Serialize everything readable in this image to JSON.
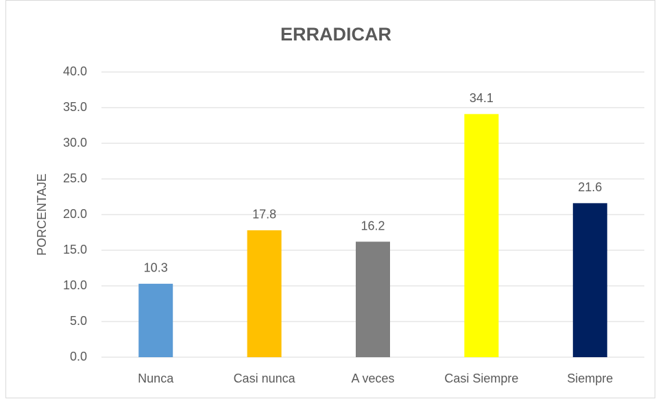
{
  "chart_data": {
    "type": "bar",
    "title": "ERRADICAR",
    "y_label": "PORCENTAJE",
    "categories": [
      "Nunca",
      "Casi nunca",
      "A veces",
      "Casi Siempre",
      "Siempre"
    ],
    "values": [
      10.3,
      17.8,
      16.2,
      34.1,
      21.6
    ],
    "colors": [
      "#5b9bd5",
      "#ffc000",
      "#7f7f7f",
      "#ffff00",
      "#002060"
    ],
    "ylim": [
      0,
      40
    ],
    "yticks": [
      {
        "value": 0,
        "label": "0.0"
      },
      {
        "value": 5,
        "label": "5.0"
      },
      {
        "value": 10,
        "label": "10.0"
      },
      {
        "value": 15,
        "label": "15.0"
      },
      {
        "value": 20,
        "label": "20.0"
      },
      {
        "value": 25,
        "label": "25.0"
      },
      {
        "value": 30,
        "label": "30.0"
      },
      {
        "value": 35,
        "label": "35.0"
      },
      {
        "value": 40,
        "label": "40.0"
      }
    ],
    "grid": true
  }
}
